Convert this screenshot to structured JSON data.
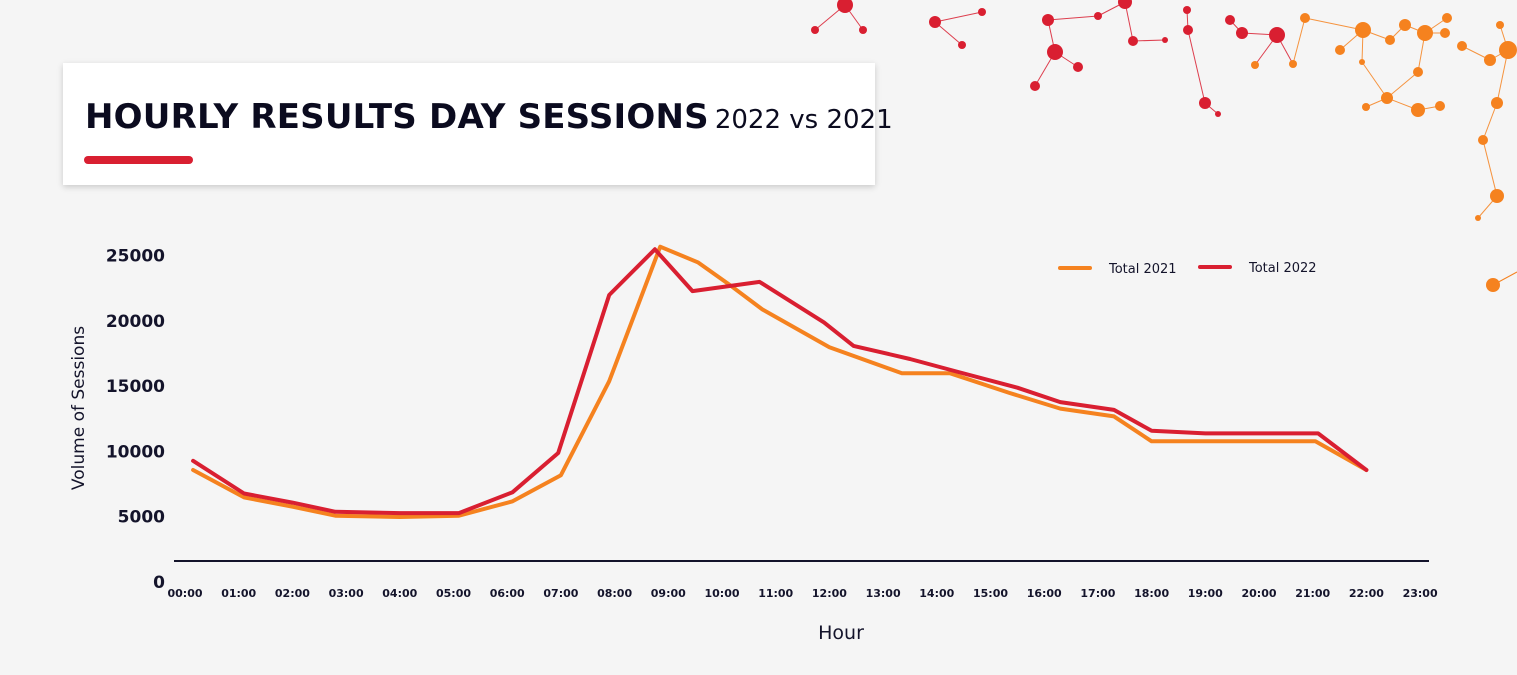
{
  "title": {
    "main": "HOURLY RESULTS DAY SESSIONS",
    "sub": "2022 vs 2021"
  },
  "colors": {
    "accent": "#d91f31",
    "series_2021": "#f5821f",
    "series_2022": "#d91f31",
    "background": "#f5f5f5",
    "text": "#14142b"
  },
  "chart_data": {
    "type": "line",
    "title": "HOURLY RESULTS DAY SESSIONS 2022 vs 2021",
    "xlabel": "Hour",
    "ylabel": "Volume of Sessions",
    "categories": [
      "00:00",
      "01:00",
      "02:00",
      "03:00",
      "04:00",
      "05:00",
      "06:00",
      "07:00",
      "08:00",
      "09:00",
      "10:00",
      "11:00",
      "12:00",
      "13:00",
      "14:00",
      "15:00",
      "16:00",
      "17:00",
      "18:00",
      "19:00",
      "20:00",
      "21:00",
      "22:00",
      "23:00"
    ],
    "yticks": [
      25000,
      20000,
      15000,
      10000,
      5000,
      0
    ],
    "ylim": [
      0,
      25000
    ],
    "legend_position": "top-right",
    "grid": false,
    "series": [
      {
        "name": "Total 2021",
        "color": "#f5821f",
        "points": [
          {
            "x": 0.15,
            "y": 8500
          },
          {
            "x": 1.1,
            "y": 6400
          },
          {
            "x": 2.0,
            "y": 5700
          },
          {
            "x": 2.8,
            "y": 5000
          },
          {
            "x": 4.0,
            "y": 4900
          },
          {
            "x": 5.1,
            "y": 5000
          },
          {
            "x": 6.1,
            "y": 6100
          },
          {
            "x": 7.0,
            "y": 8100
          },
          {
            "x": 7.9,
            "y": 15300
          },
          {
            "x": 8.85,
            "y": 25600
          },
          {
            "x": 9.55,
            "y": 24400
          },
          {
            "x": 10.1,
            "y": 22800
          },
          {
            "x": 10.75,
            "y": 20800
          },
          {
            "x": 12.0,
            "y": 17900
          },
          {
            "x": 13.35,
            "y": 15900
          },
          {
            "x": 14.25,
            "y": 15900
          },
          {
            "x": 15.35,
            "y": 14400
          },
          {
            "x": 16.3,
            "y": 13200
          },
          {
            "x": 17.3,
            "y": 12600
          },
          {
            "x": 18.0,
            "y": 10700
          },
          {
            "x": 19.0,
            "y": 10700
          },
          {
            "x": 21.05,
            "y": 10700
          },
          {
            "x": 22.0,
            "y": 8500
          }
        ]
      },
      {
        "name": "Total 2022",
        "color": "#d91f31",
        "points": [
          {
            "x": 0.15,
            "y": 9200
          },
          {
            "x": 1.1,
            "y": 6700
          },
          {
            "x": 2.0,
            "y": 6000
          },
          {
            "x": 2.8,
            "y": 5300
          },
          {
            "x": 4.0,
            "y": 5200
          },
          {
            "x": 5.1,
            "y": 5200
          },
          {
            "x": 6.1,
            "y": 6800
          },
          {
            "x": 6.95,
            "y": 9800
          },
          {
            "x": 7.9,
            "y": 21900
          },
          {
            "x": 8.75,
            "y": 25400
          },
          {
            "x": 9.45,
            "y": 22200
          },
          {
            "x": 10.7,
            "y": 22900
          },
          {
            "x": 11.9,
            "y": 19800
          },
          {
            "x": 12.45,
            "y": 18000
          },
          {
            "x": 13.5,
            "y": 17000
          },
          {
            "x": 14.4,
            "y": 16000
          },
          {
            "x": 15.5,
            "y": 14800
          },
          {
            "x": 16.3,
            "y": 13700
          },
          {
            "x": 17.3,
            "y": 13100
          },
          {
            "x": 18.0,
            "y": 11500
          },
          {
            "x": 19.0,
            "y": 11300
          },
          {
            "x": 21.1,
            "y": 11300
          },
          {
            "x": 22.0,
            "y": 8500
          }
        ]
      }
    ]
  }
}
